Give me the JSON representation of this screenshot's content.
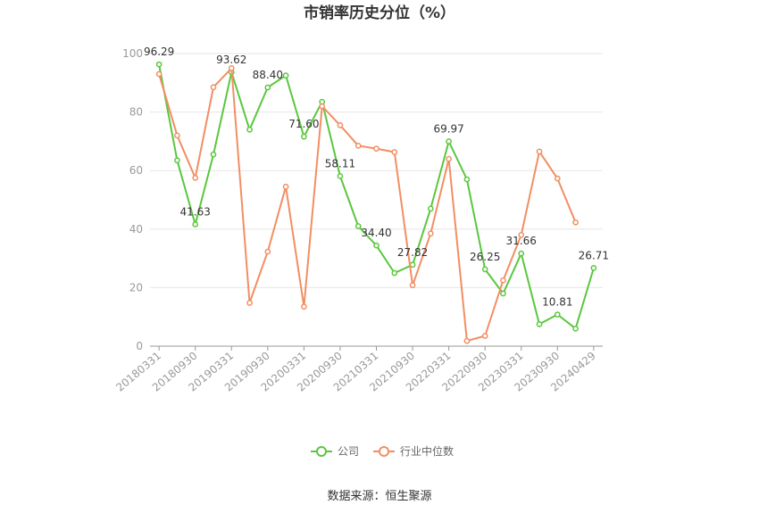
{
  "chart_data": {
    "type": "line",
    "title": "市销率历史分位（%）",
    "source": "数据来源：恒生聚源",
    "ylim": [
      0,
      100
    ],
    "yticks": [
      0,
      20,
      40,
      60,
      80,
      100
    ],
    "x": [
      "20180331",
      "20180630",
      "20180930",
      "20181231",
      "20190331",
      "20190630",
      "20190930",
      "20191231",
      "20200331",
      "20200630",
      "20200930",
      "20201231",
      "20210331",
      "20210630",
      "20210930",
      "20211231",
      "20220331",
      "20220630",
      "20220930",
      "20221231",
      "20230331",
      "20230630",
      "20230930",
      "20231231",
      "20240429"
    ],
    "xtick_labels": [
      "20180331",
      "20180930",
      "20190331",
      "20190930",
      "20200331",
      "20200930",
      "20210331",
      "20210930",
      "20220331",
      "20220930",
      "20230331",
      "20230930",
      "20240429"
    ],
    "grid": true,
    "legend_position": "bottom",
    "series": [
      {
        "name": "公司",
        "color": "#5ac73e",
        "values": [
          96.29,
          63.5,
          41.63,
          65.5,
          93.62,
          74.0,
          88.4,
          92.5,
          71.6,
          83.5,
          58.11,
          41.0,
          34.4,
          25.0,
          27.82,
          47.0,
          69.97,
          57.0,
          26.25,
          18.0,
          31.66,
          7.5,
          10.81,
          6.0,
          26.71
        ],
        "labels": {
          "0": "96.29",
          "2": "41.63",
          "4": "93.62",
          "6": "88.40",
          "8": "71.60",
          "10": "58.11",
          "12": "34.40",
          "14": "27.82",
          "16": "69.97",
          "18": "26.25",
          "20": "31.66",
          "22": "10.81",
          "24": "26.71"
        }
      },
      {
        "name": "行业中位数",
        "color": "#f28e63",
        "values": [
          93.0,
          72.0,
          57.5,
          88.5,
          95.0,
          14.8,
          32.3,
          54.5,
          13.5,
          82.0,
          75.5,
          68.5,
          67.5,
          66.3,
          20.8,
          38.5,
          64.0,
          1.8,
          3.5,
          22.5,
          38.0,
          66.5,
          57.3,
          42.3,
          null
        ]
      }
    ]
  }
}
